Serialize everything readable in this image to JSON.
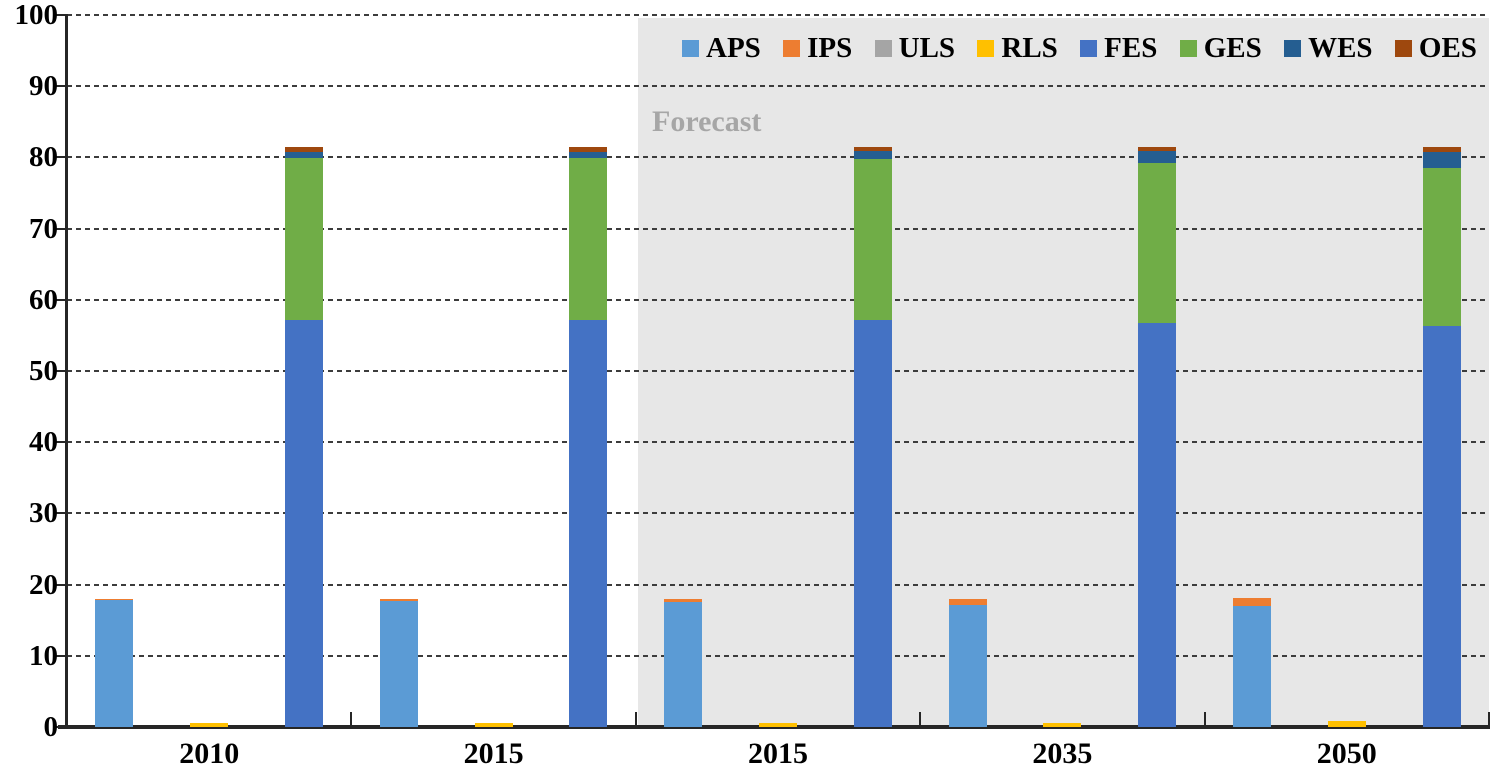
{
  "chart_data": {
    "type": "bar",
    "subtype": "grouped-stacked-columns",
    "title": "",
    "xlabel": "",
    "ylabel": "",
    "ylim": [
      0,
      100
    ],
    "yticks": [
      0,
      10,
      20,
      30,
      40,
      50,
      60,
      70,
      80,
      90,
      100
    ],
    "grid": "dashed-horizontal",
    "legend_position": "top-right-inside",
    "categories": [
      "2010",
      "2015",
      "2015",
      "2035",
      "2050"
    ],
    "forecast": {
      "label": "Forecast",
      "starts_at_category_index": 2,
      "background_color": "#e7e7e7"
    },
    "legend": [
      {
        "label": "APS",
        "color": "#5B9BD5"
      },
      {
        "label": "IPS",
        "color": "#ED7D31"
      },
      {
        "label": "ULS",
        "color": "#A5A5A5"
      },
      {
        "label": "RLS",
        "color": "#FFC000"
      },
      {
        "label": "FES",
        "color": "#4472C4"
      },
      {
        "label": "GES",
        "color": "#70AD47"
      },
      {
        "label": "WES",
        "color": "#255E91"
      },
      {
        "label": "OES",
        "color": "#9E480E"
      }
    ],
    "groups": [
      {
        "category": "2010",
        "bars": [
          [
            {
              "series": "APS",
              "value": 17.8
            },
            {
              "series": "IPS",
              "value": 0.2
            }
          ],
          [
            {
              "series": "RLS",
              "value": 0.5
            }
          ],
          [
            {
              "series": "FES",
              "value": 57.2
            },
            {
              "series": "GES",
              "value": 22.7
            },
            {
              "series": "WES",
              "value": 0.8
            },
            {
              "series": "OES",
              "value": 0.8
            }
          ]
        ]
      },
      {
        "category": "2015",
        "bars": [
          [
            {
              "series": "APS",
              "value": 17.7
            },
            {
              "series": "IPS",
              "value": 0.3
            }
          ],
          [
            {
              "series": "RLS",
              "value": 0.5
            }
          ],
          [
            {
              "series": "FES",
              "value": 57.1
            },
            {
              "series": "GES",
              "value": 22.8
            },
            {
              "series": "WES",
              "value": 0.9
            },
            {
              "series": "OES",
              "value": 0.7
            }
          ]
        ]
      },
      {
        "category": "2015",
        "bars": [
          [
            {
              "series": "APS",
              "value": 17.6
            },
            {
              "series": "IPS",
              "value": 0.4
            }
          ],
          [
            {
              "series": "RLS",
              "value": 0.5
            }
          ],
          [
            {
              "series": "FES",
              "value": 57.2
            },
            {
              "series": "GES",
              "value": 22.6
            },
            {
              "series": "WES",
              "value": 1.1
            },
            {
              "series": "OES",
              "value": 0.6
            }
          ]
        ]
      },
      {
        "category": "2035",
        "bars": [
          [
            {
              "series": "APS",
              "value": 17.2
            },
            {
              "series": "IPS",
              "value": 0.8
            }
          ],
          [
            {
              "series": "RLS",
              "value": 0.5
            }
          ],
          [
            {
              "series": "FES",
              "value": 56.8
            },
            {
              "series": "GES",
              "value": 22.4
            },
            {
              "series": "WES",
              "value": 1.7
            },
            {
              "series": "OES",
              "value": 0.6
            }
          ]
        ]
      },
      {
        "category": "2050",
        "bars": [
          [
            {
              "series": "APS",
              "value": 17.0
            },
            {
              "series": "IPS",
              "value": 1.1
            }
          ],
          [
            {
              "series": "RLS",
              "value": 0.8
            }
          ],
          [
            {
              "series": "FES",
              "value": 56.3
            },
            {
              "series": "GES",
              "value": 22.2
            },
            {
              "series": "WES",
              "value": 2.3
            },
            {
              "series": "OES",
              "value": 0.7
            }
          ]
        ]
      }
    ]
  }
}
